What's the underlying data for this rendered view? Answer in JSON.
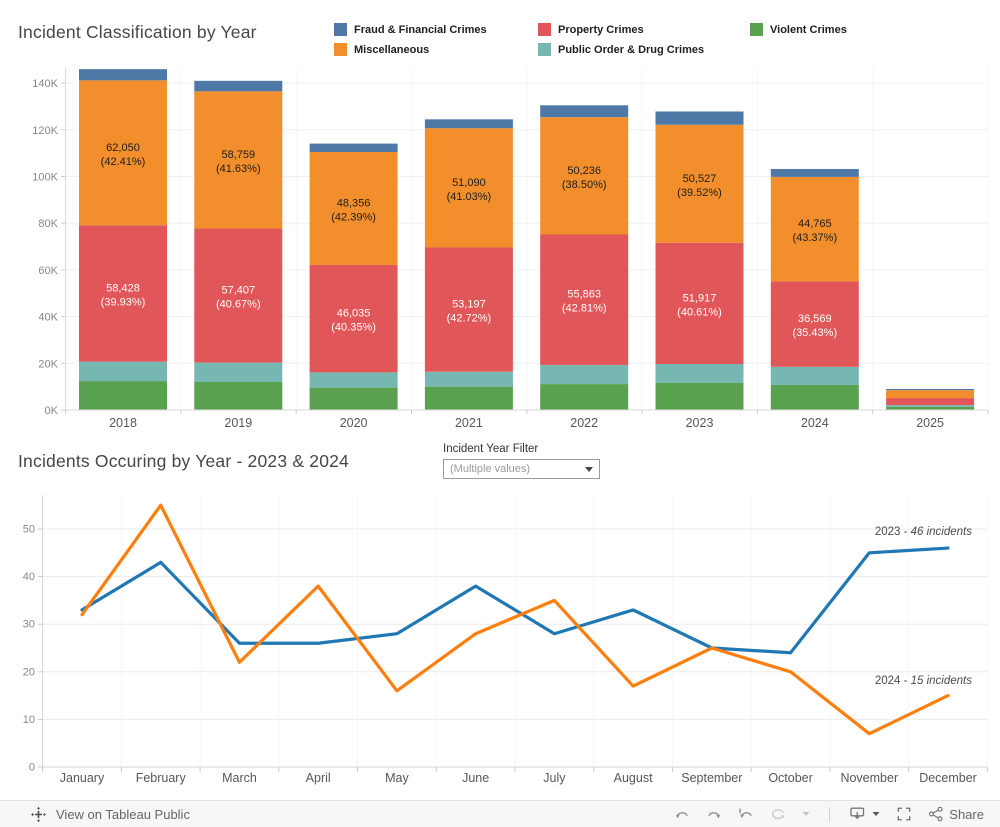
{
  "chart1": {
    "title": "Incident Classification by Year",
    "legend": {
      "items": [
        {
          "label": "Fraud & Financial Crimes",
          "color": "#4e79a7"
        },
        {
          "label": "Property Crimes",
          "color": "#e15759"
        },
        {
          "label": "Violent Crimes",
          "color": "#59a14f"
        },
        {
          "label": "Miscellaneous",
          "color": "#f28e2b"
        },
        {
          "label": "Public Order & Drug Crimes",
          "color": "#76b7b2"
        }
      ]
    },
    "chart_data": {
      "type": "bar",
      "stacked": true,
      "categories": [
        "2018",
        "2019",
        "2020",
        "2021",
        "2022",
        "2023",
        "2024",
        "2025"
      ],
      "series": [
        {
          "name": "Violent Crimes",
          "color": "#59a14f",
          "values": [
            12400,
            12000,
            9600,
            10000,
            11100,
            11700,
            10700,
            1300
          ]
        },
        {
          "name": "Public Order & Drug Crimes",
          "color": "#76b7b2",
          "values": [
            8300,
            8300,
            6500,
            6400,
            8200,
            8000,
            7800,
            800
          ]
        },
        {
          "name": "Property Crimes",
          "color": "#e15759",
          "label_color": "#ffffff",
          "values": [
            58428,
            57407,
            46035,
            53197,
            55863,
            51917,
            36569,
            3000
          ],
          "labels": [
            "58,428\n(39.93%)",
            "57,407\n(40.67%)",
            "46,035\n(40.35%)",
            "53,197\n(42.72%)",
            "55,863\n(42.81%)",
            "51,917\n(40.61%)",
            "36,569\n(35.43%)",
            ""
          ]
        },
        {
          "name": "Miscellaneous",
          "color": "#f28e2b",
          "label_color": "#1e1e1e",
          "values": [
            62050,
            58759,
            48356,
            51090,
            50236,
            50527,
            44765,
            3400
          ],
          "labels": [
            "62,050\n(42.41%)",
            "58,759\n(41.63%)",
            "48,356\n(42.39%)",
            "51,090\n(41.03%)",
            "50,236\n(38.50%)",
            "50,527\n(39.52%)",
            "44,765\n(43.37%)",
            ""
          ]
        },
        {
          "name": "Fraud & Financial Crimes",
          "color": "#4e79a7",
          "values": [
            4800,
            4500,
            3600,
            3800,
            5100,
            5700,
            3400,
            500
          ]
        }
      ],
      "ylim": [
        0,
        150000
      ],
      "y_ticks": [
        "0K",
        "20K",
        "40K",
        "60K",
        "80K",
        "100K",
        "120K",
        "140K"
      ],
      "grid": true,
      "xlabel": "",
      "ylabel": ""
    }
  },
  "chart2": {
    "title": "Incidents Occuring by Year - 2023 & 2024",
    "filter": {
      "label": "Incident Year Filter",
      "value": "(Multiple values)"
    },
    "chart_data": {
      "type": "line",
      "x": [
        "January",
        "February",
        "March",
        "April",
        "May",
        "June",
        "July",
        "August",
        "September",
        "October",
        "November",
        "December"
      ],
      "series": [
        {
          "name": "2023",
          "color": "#1f77b4",
          "values": [
            33,
            43,
            26,
            26,
            28,
            38,
            28,
            33,
            25,
            24,
            45,
            46
          ]
        },
        {
          "name": "2024",
          "color": "#ff7f0e",
          "values": [
            32,
            55,
            22,
            38,
            16,
            28,
            35,
            17,
            25,
            20,
            7,
            15
          ]
        }
      ],
      "ylim": [
        0,
        58
      ],
      "y_ticks": [
        "0",
        "10",
        "20",
        "30",
        "40",
        "50"
      ],
      "grid": true,
      "legend_position": "none",
      "annotations": [
        {
          "prefix": "2023 - ",
          "italic": "46 incidents"
        },
        {
          "prefix": "2024 - ",
          "italic": "15 incidents"
        }
      ]
    }
  },
  "toolbar": {
    "view_on_label": "View on Tableau Public",
    "share_label": "Share",
    "icons": [
      "tableau-logo-icon",
      "undo-icon",
      "redo-icon",
      "revert-icon",
      "refresh-icon",
      "chevron-down-icon",
      "download-icon",
      "fullscreen-icon",
      "share-icon"
    ]
  }
}
